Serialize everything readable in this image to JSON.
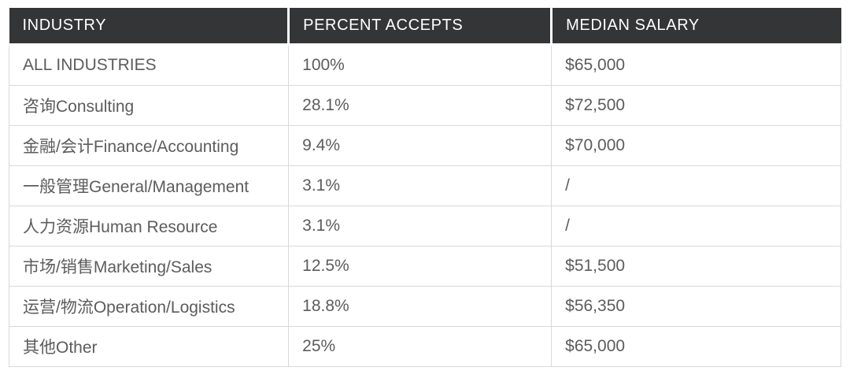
{
  "colors": {
    "background": "#ffffff",
    "header_bg": "#343537",
    "header_text": "#ffffff",
    "body_text": "#5c5c5c",
    "border": "#d9d9d9"
  },
  "chart_data": {
    "type": "table",
    "columns": [
      "INDUSTRY",
      "PERCENT ACCEPTS",
      "MEDIAN SALARY"
    ],
    "rows": [
      [
        "ALL INDUSTRIES",
        "100%",
        "$65,000"
      ],
      [
        "咨询Consulting",
        "28.1%",
        "$72,500"
      ],
      [
        "金融/会计Finance/Accounting",
        "9.4%",
        "$70,000"
      ],
      [
        "一般管理General/Management",
        "3.1%",
        "/"
      ],
      [
        "人力资源Human Resource",
        "3.1%",
        "/"
      ],
      [
        "市场/销售Marketing/Sales",
        "12.5%",
        "$51,500"
      ],
      [
        "运营/物流Operation/Logistics",
        "18.8%",
        "$56,350"
      ],
      [
        "其他Other",
        "25%",
        "$65,000"
      ]
    ]
  }
}
